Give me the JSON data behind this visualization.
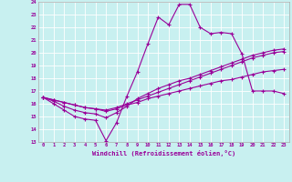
{
  "title": "",
  "xlabel": "Windchill (Refroidissement éolien,°C)",
  "ylabel": "",
  "bg_color": "#c8f0f0",
  "line_color": "#990099",
  "xlim": [
    -0.5,
    23.5
  ],
  "ylim": [
    13,
    24
  ],
  "yticks": [
    13,
    14,
    15,
    16,
    17,
    18,
    19,
    20,
    21,
    22,
    23,
    24
  ],
  "xticks": [
    0,
    1,
    2,
    3,
    4,
    5,
    6,
    7,
    8,
    9,
    10,
    11,
    12,
    13,
    14,
    15,
    16,
    17,
    18,
    19,
    20,
    21,
    22,
    23
  ],
  "series": [
    [
      16.5,
      16.0,
      15.5,
      15.0,
      14.8,
      14.7,
      13.1,
      14.5,
      16.6,
      18.5,
      20.7,
      22.8,
      22.2,
      23.8,
      23.8,
      22.0,
      21.5,
      21.6,
      21.5,
      19.9,
      17.0,
      17.0,
      17.0,
      16.8
    ],
    [
      16.5,
      16.2,
      15.8,
      15.5,
      15.3,
      15.2,
      14.9,
      15.3,
      15.8,
      16.4,
      16.8,
      17.2,
      17.5,
      17.8,
      18.0,
      18.3,
      18.6,
      18.9,
      19.2,
      19.5,
      19.8,
      20.0,
      20.2,
      20.3
    ],
    [
      16.5,
      16.3,
      16.1,
      15.9,
      15.7,
      15.6,
      15.5,
      15.7,
      16.0,
      16.3,
      16.6,
      16.9,
      17.2,
      17.5,
      17.8,
      18.1,
      18.4,
      18.7,
      19.0,
      19.3,
      19.6,
      19.8,
      20.0,
      20.1
    ],
    [
      16.5,
      16.3,
      16.1,
      15.9,
      15.7,
      15.6,
      15.4,
      15.6,
      15.9,
      16.1,
      16.4,
      16.6,
      16.8,
      17.0,
      17.2,
      17.4,
      17.6,
      17.8,
      17.9,
      18.1,
      18.3,
      18.5,
      18.6,
      18.7
    ]
  ]
}
